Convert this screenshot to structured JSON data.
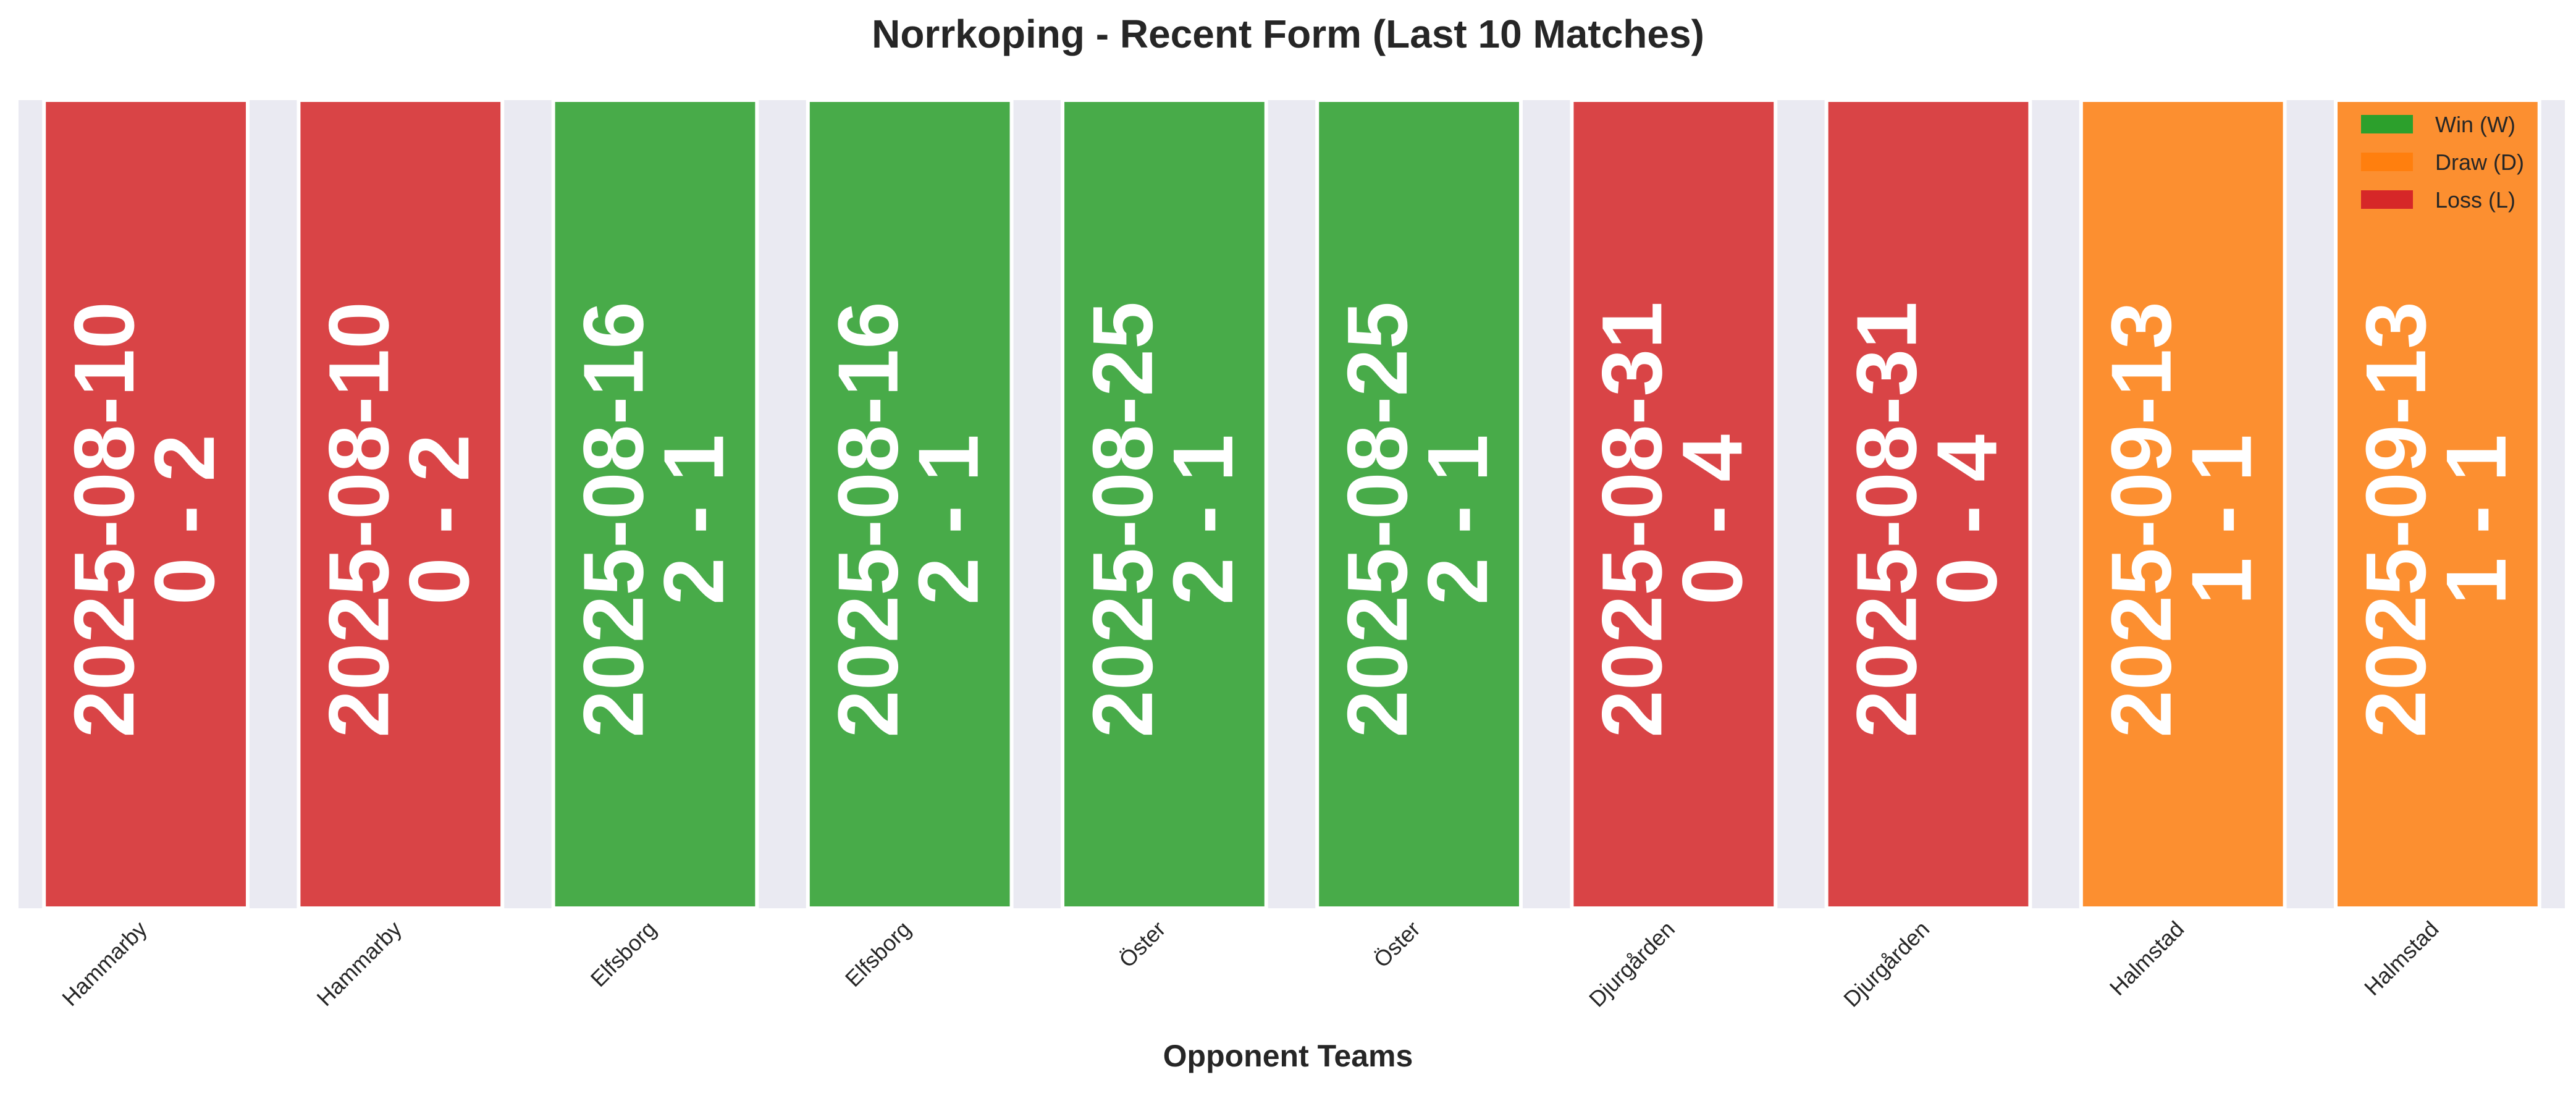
{
  "chart_data": {
    "type": "bar",
    "title": "Norrkoping - Recent Form (Last 10 Matches)",
    "xlabel": "Opponent Teams",
    "ylabel": "",
    "grid": false,
    "legend_placement": "top-right",
    "categories": [
      "Hammarby",
      "Hammarby",
      "Elfsborg",
      "Elfsborg",
      "Öster",
      "Öster",
      "Djurgården",
      "Djurgården",
      "Halmstad",
      "Halmstad"
    ],
    "values": [
      1,
      1,
      1,
      1,
      1,
      1,
      1,
      1,
      1,
      1
    ],
    "results": [
      "L",
      "L",
      "W",
      "W",
      "W",
      "W",
      "L",
      "L",
      "D",
      "D"
    ],
    "dates": [
      "2025-08-10",
      "2025-08-10",
      "2025-08-16",
      "2025-08-16",
      "2025-08-25",
      "2025-08-25",
      "2025-08-31",
      "2025-08-31",
      "2025-09-13",
      "2025-09-13"
    ],
    "scores": [
      "0 - 2",
      "0 - 2",
      "2 - 1",
      "2 - 1",
      "2 - 1",
      "2 - 1",
      "0 - 4",
      "0 - 4",
      "1 - 1",
      "1 - 1"
    ],
    "legend": [
      {
        "key": "W",
        "label": "Win (W)",
        "color": "#2ca02c"
      },
      {
        "key": "D",
        "label": "Draw (D)",
        "color": "#ff7f0e"
      },
      {
        "key": "L",
        "label": "Loss (L)",
        "color": "#d62728"
      }
    ],
    "colors": {
      "W": "#2ca02c",
      "D": "#ff7f0e",
      "L": "#d62728"
    },
    "plot_background": "#eaeaf2"
  }
}
